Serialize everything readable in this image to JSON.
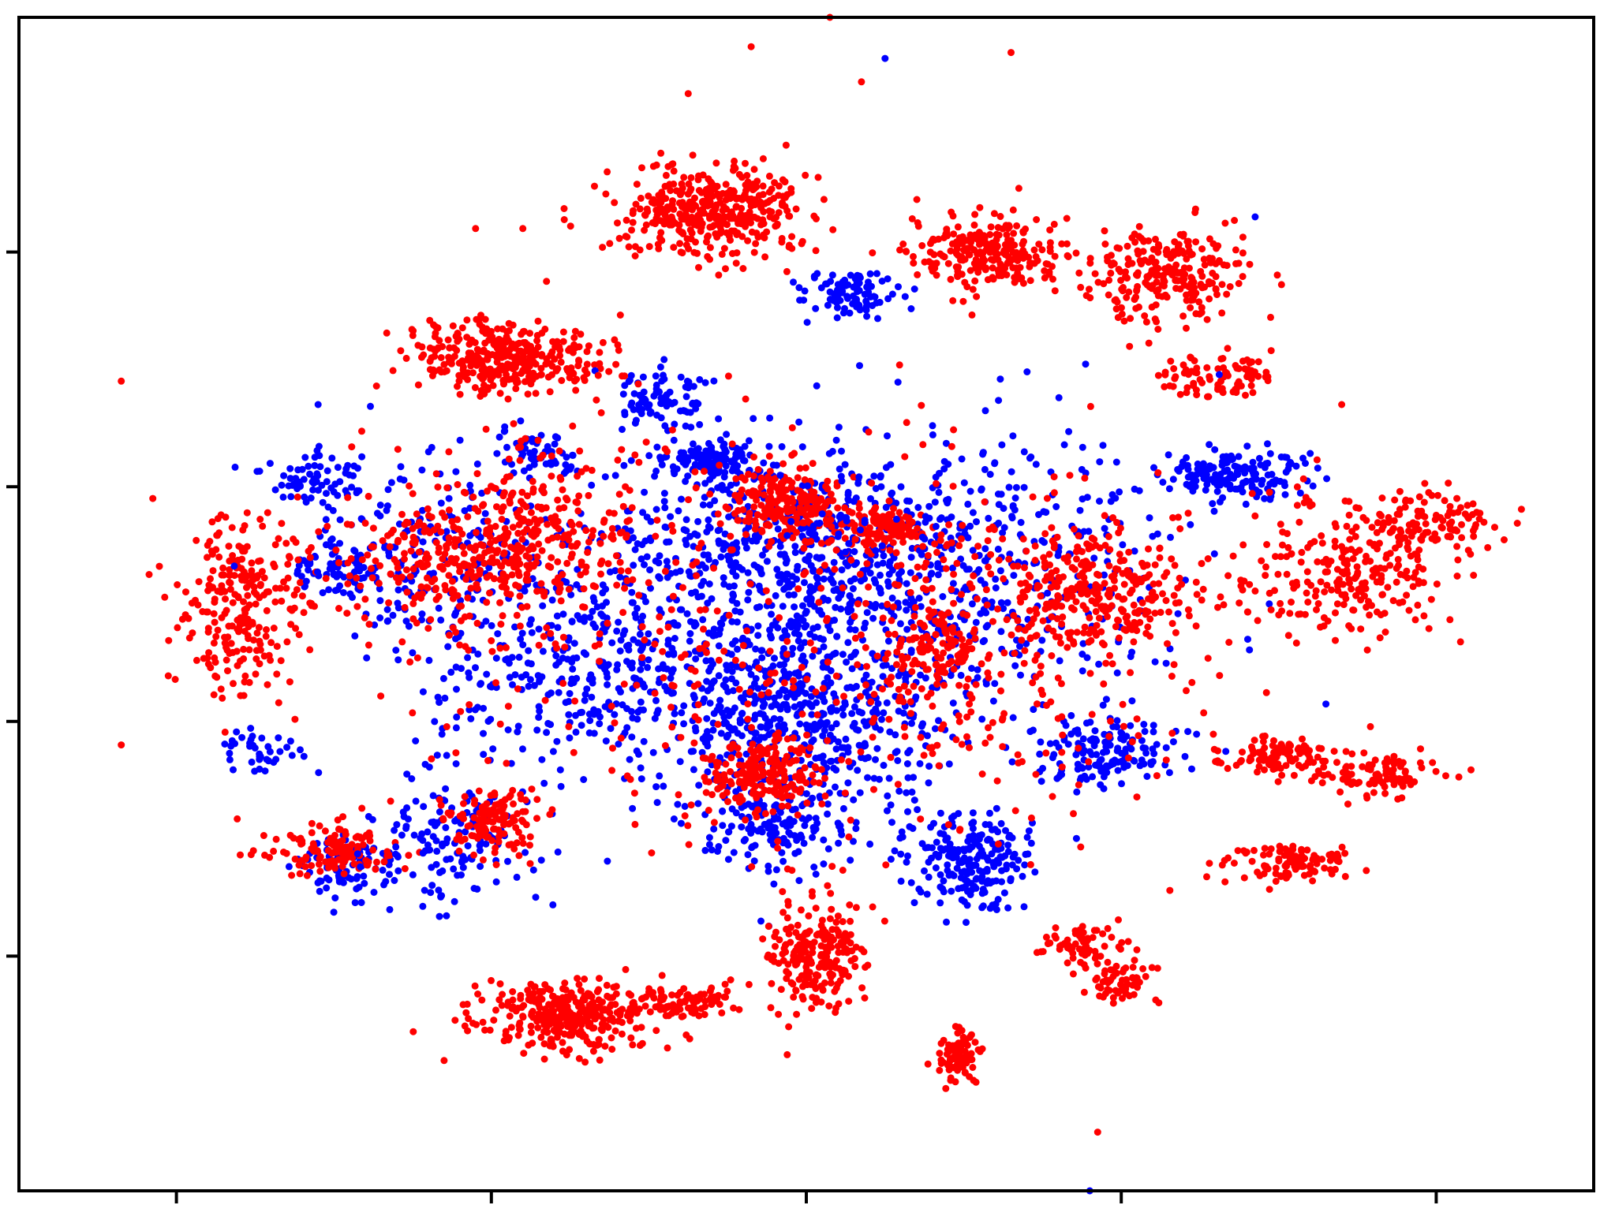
{
  "chart_data": {
    "type": "scatter",
    "title": "",
    "xlabel": "",
    "ylabel": "",
    "grid": false,
    "legend": "none",
    "xlim": [
      -100,
      100
    ],
    "ylim": [
      -100,
      100
    ],
    "x_ticks": [
      -80,
      -40,
      0,
      40,
      80
    ],
    "y_ticks": [
      -60,
      -20,
      20,
      60
    ],
    "tick_labels_shown": false,
    "series": [
      {
        "color": "#0000ff",
        "description_clusters": [
          {
            "cx": -12,
            "cy": 24,
            "sx": 3,
            "sy": 2,
            "n": 120
          },
          {
            "cx": -18,
            "cy": 35,
            "sx": 3,
            "sy": 2.5,
            "n": 80
          },
          {
            "cx": -34,
            "cy": 25,
            "sx": 2.5,
            "sy": 2,
            "n": 60
          },
          {
            "cx": -63,
            "cy": 21,
            "sx": 3,
            "sy": 2,
            "n": 70
          },
          {
            "cx": -60,
            "cy": 6,
            "sx": 3,
            "sy": 2,
            "n": 60
          },
          {
            "cx": -58,
            "cy": -45,
            "sx": 3,
            "sy": 3,
            "n": 90
          },
          {
            "cx": -70,
            "cy": -25,
            "sx": 3,
            "sy": 2,
            "n": 40
          },
          {
            "cx": -2,
            "cy": 9,
            "sx": 12,
            "sy": 10,
            "n": 700
          },
          {
            "cx": -2,
            "cy": -18,
            "sx": 10,
            "sy": 9,
            "n": 600
          },
          {
            "cx": -4,
            "cy": -37,
            "sx": 4,
            "sy": 4,
            "n": 150
          },
          {
            "cx": 21,
            "cy": -44,
            "sx": 4,
            "sy": 4,
            "n": 220
          },
          {
            "cx": 38,
            "cy": -25,
            "sx": 5,
            "sy": 3,
            "n": 150
          },
          {
            "cx": 55,
            "cy": 22,
            "sx": 5,
            "sy": 2,
            "n": 160
          },
          {
            "cx": 5,
            "cy": 53,
            "sx": 3,
            "sy": 2,
            "n": 100
          },
          {
            "cx": -30,
            "cy": -10,
            "sx": 9,
            "sy": 8,
            "n": 300
          },
          {
            "cx": -45,
            "cy": -40,
            "sx": 5,
            "sy": 6,
            "n": 150
          },
          {
            "cx": 25,
            "cy": 5,
            "sx": 12,
            "sy": 12,
            "n": 350
          },
          {
            "cx": -48,
            "cy": 10,
            "sx": 8,
            "sy": 8,
            "n": 200
          }
        ],
        "outliers": [
          [
            10,
            93
          ],
          [
            57,
            66
          ],
          [
            -62,
            34
          ],
          [
            36,
            -100
          ]
        ]
      },
      {
        "color": "#ff0000",
        "description_clusters": [
          {
            "cx": -38,
            "cy": 42,
            "sx": 6,
            "sy": 3,
            "n": 350
          },
          {
            "cx": -12,
            "cy": 67,
            "sx": 6,
            "sy": 4,
            "n": 400
          },
          {
            "cx": 23,
            "cy": 60,
            "sx": 5,
            "sy": 3,
            "n": 250
          },
          {
            "cx": 45,
            "cy": 56,
            "sx": 5,
            "sy": 4,
            "n": 250
          },
          {
            "cx": 52,
            "cy": 39,
            "sx": 4,
            "sy": 2,
            "n": 90
          },
          {
            "cx": -2,
            "cy": 17,
            "sx": 4,
            "sy": 3,
            "n": 220
          },
          {
            "cx": 10,
            "cy": 13,
            "sx": 3,
            "sy": 2,
            "n": 120
          },
          {
            "cx": -72,
            "cy": 0,
            "sx": 4,
            "sy": 8,
            "n": 250
          },
          {
            "cx": -60,
            "cy": -42,
            "sx": 4,
            "sy": 2,
            "n": 130
          },
          {
            "cx": -30,
            "cy": -70,
            "sx": 6,
            "sy": 3,
            "n": 350
          },
          {
            "cx": -15,
            "cy": -68,
            "sx": 3,
            "sy": 1.5,
            "n": 80
          },
          {
            "cx": -7,
            "cy": -29,
            "sx": 4,
            "sy": 3,
            "n": 180
          },
          {
            "cx": 1,
            "cy": -60,
            "sx": 3,
            "sy": 5,
            "n": 230
          },
          {
            "cx": 19,
            "cy": -77,
            "sx": 1.2,
            "sy": 2,
            "n": 80
          },
          {
            "cx": 35,
            "cy": -58,
            "sx": 3,
            "sy": 2,
            "n": 70
          },
          {
            "cx": 40,
            "cy": -65,
            "sx": 2,
            "sy": 2,
            "n": 60
          },
          {
            "cx": 62,
            "cy": -44,
            "sx": 4,
            "sy": 1.5,
            "n": 110
          },
          {
            "cx": 60,
            "cy": -26,
            "sx": 3,
            "sy": 1.5,
            "n": 90
          },
          {
            "cx": 72,
            "cy": -29,
            "sx": 4,
            "sy": 2,
            "n": 100
          },
          {
            "cx": 68,
            "cy": 6,
            "sx": 6,
            "sy": 6,
            "n": 250
          },
          {
            "cx": 80,
            "cy": 14,
            "sx": 4,
            "sy": 3,
            "n": 100
          },
          {
            "cx": 37,
            "cy": 2,
            "sx": 7,
            "sy": 5,
            "n": 300
          },
          {
            "cx": 17,
            "cy": -7,
            "sx": 3,
            "sy": 3,
            "n": 100
          },
          {
            "cx": -40,
            "cy": -37,
            "sx": 3,
            "sy": 3,
            "n": 120
          },
          {
            "cx": -44,
            "cy": 7,
            "sx": 8,
            "sy": 5,
            "n": 300
          },
          {
            "cx": -35,
            "cy": 15,
            "sx": 6,
            "sy": 6,
            "n": 150
          },
          {
            "cx": 20,
            "cy": -10,
            "sx": 15,
            "sy": 15,
            "n": 300
          },
          {
            "cx": -20,
            "cy": 0,
            "sx": 15,
            "sy": 20,
            "n": 250
          }
        ],
        "outliers": [
          [
            -87,
            38
          ],
          [
            -87,
            -24
          ],
          [
            -83,
            18
          ],
          [
            -42,
            64
          ],
          [
            -36,
            64
          ],
          [
            -7,
            95
          ],
          [
            3,
            100
          ],
          [
            7,
            89
          ],
          [
            -15,
            87
          ],
          [
            19,
            101
          ],
          [
            26,
            94
          ],
          [
            26,
            62
          ],
          [
            -33,
            55
          ],
          [
            -16,
            -104
          ],
          [
            37,
            -90
          ],
          [
            68,
            34
          ]
        ]
      }
    ]
  }
}
